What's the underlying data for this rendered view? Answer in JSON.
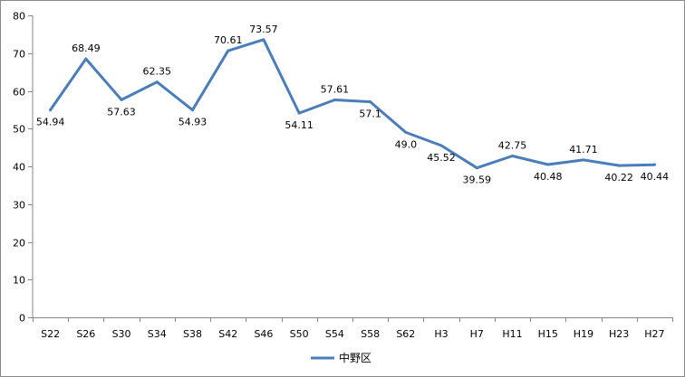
{
  "chart_data": {
    "type": "line",
    "categories": [
      "S22",
      "S26",
      "S30",
      "S34",
      "S38",
      "S42",
      "S46",
      "S50",
      "S54",
      "S58",
      "S62",
      "H3",
      "H7",
      "H11",
      "H15",
      "H19",
      "H23",
      "H27"
    ],
    "series": [
      {
        "name": "中野区",
        "values": [
          54.94,
          68.49,
          57.63,
          62.35,
          54.93,
          70.61,
          73.57,
          54.11,
          57.61,
          57.1,
          49.0,
          45.52,
          39.59,
          42.75,
          40.48,
          41.71,
          40.22,
          40.44
        ],
        "labels": [
          "54.94",
          "68.49",
          "57.63",
          "62.35",
          "54.93",
          "70.61",
          "73.57",
          "54.11",
          "57.61",
          "57.1",
          "49.0",
          "45.52",
          "39.59",
          "42.75",
          "40.48",
          "41.71",
          "40.22",
          "40.44"
        ],
        "color": "#4a7ebb"
      }
    ],
    "ylim": [
      0,
      80
    ],
    "yticks": [
      0,
      10,
      20,
      30,
      40,
      50,
      60,
      70,
      80
    ],
    "grid": false,
    "legend": "bottom"
  }
}
